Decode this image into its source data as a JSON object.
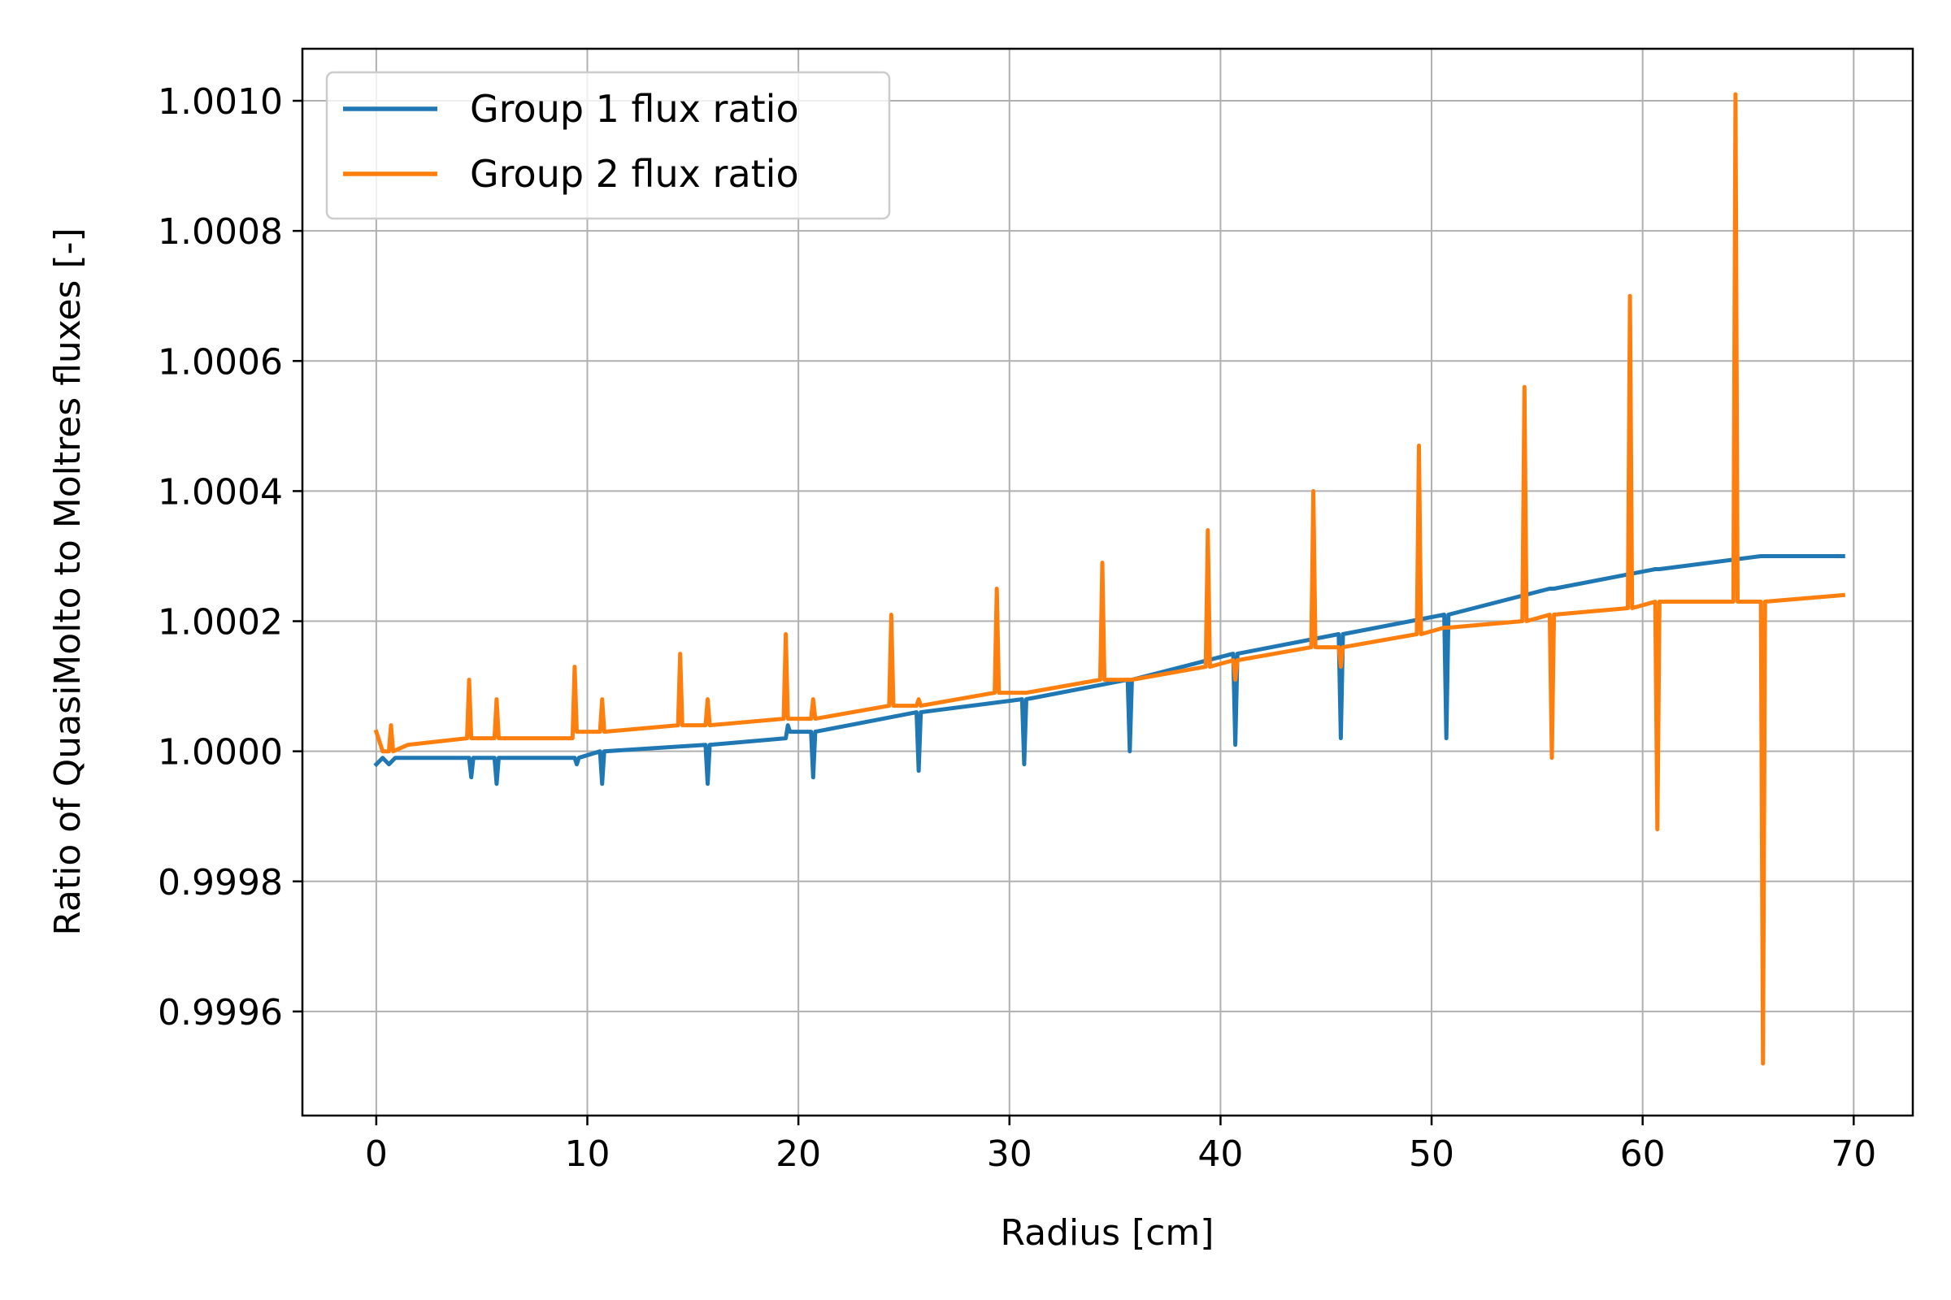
{
  "chart_data": {
    "type": "line",
    "title": "",
    "xlabel": "Radius [cm]",
    "ylabel": "Ratio of QuasiMolto to Moltres fluxes [-]",
    "xlim": [
      -3.5,
      72.8
    ],
    "ylim": [
      0.99944,
      1.00108
    ],
    "grid": true,
    "legend_position": "top-left",
    "x_ticks": [
      0,
      10,
      20,
      30,
      40,
      50,
      60,
      70
    ],
    "x_tick_labels": [
      "0",
      "10",
      "20",
      "30",
      "40",
      "50",
      "60",
      "70"
    ],
    "y_ticks": [
      0.9996,
      0.9998,
      1.0,
      1.0002,
      1.0004,
      1.0006,
      1.0008,
      1.001
    ],
    "y_tick_labels": [
      "0.9996",
      "0.9998",
      "1.0000",
      "1.0002",
      "1.0004",
      "1.0006",
      "1.0008",
      "1.0010"
    ],
    "colors": {
      "group1": "#1f77b4",
      "group2": "#ff7f0e",
      "grid": "#b0b0b0"
    },
    "series": [
      {
        "name": "Group 1 flux ratio",
        "color": "#1f77b4",
        "x": [
          0,
          0.3,
          0.6,
          0.9,
          4.4,
          4.5,
          4.6,
          5.6,
          5.7,
          5.8,
          9.4,
          9.5,
          9.6,
          10.6,
          10.7,
          10.8,
          15.6,
          15.7,
          15.8,
          19.4,
          19.5,
          19.6,
          20.6,
          20.7,
          20.8,
          25.6,
          25.7,
          25.8,
          30.6,
          30.7,
          30.8,
          35.6,
          35.7,
          35.8,
          40.6,
          40.7,
          40.8,
          45.6,
          45.7,
          45.8,
          50.6,
          50.7,
          50.8,
          55.6,
          55.7,
          55.8,
          60.6,
          60.7,
          60.8,
          65.6,
          65.7,
          65.8,
          69.5
        ],
        "y": [
          0.99998,
          0.99999,
          0.99998,
          0.99999,
          0.99999,
          0.99996,
          0.99999,
          0.99999,
          0.99995,
          0.99999,
          0.99999,
          0.99998,
          0.99999,
          1.0,
          0.99995,
          1.0,
          1.00001,
          0.99995,
          1.00001,
          1.00002,
          1.00004,
          1.00003,
          1.00003,
          0.99996,
          1.00003,
          1.00006,
          0.99997,
          1.00006,
          1.00008,
          0.99998,
          1.00008,
          1.00011,
          1.0,
          1.00011,
          1.00015,
          1.00001,
          1.00015,
          1.00018,
          1.00002,
          1.00018,
          1.00021,
          1.00002,
          1.00021,
          1.00025,
          1.00025,
          1.00025,
          1.00028,
          1.00028,
          1.00028,
          1.0003,
          1.0003,
          1.0003,
          1.0003
        ]
      },
      {
        "name": "Group 2 flux ratio",
        "color": "#ff7f0e",
        "x": [
          0,
          0.3,
          0.6,
          0.7,
          0.8,
          1.5,
          4.3,
          4.4,
          4.5,
          5.6,
          5.7,
          5.8,
          9.3,
          9.4,
          9.5,
          10.6,
          10.7,
          10.8,
          14.3,
          14.4,
          14.5,
          15.6,
          15.7,
          15.8,
          19.3,
          19.4,
          19.5,
          20.6,
          20.7,
          20.8,
          24.3,
          24.4,
          24.5,
          25.6,
          25.7,
          25.8,
          29.3,
          29.4,
          29.5,
          30.6,
          30.7,
          30.8,
          34.3,
          34.4,
          34.5,
          35.6,
          35.7,
          35.8,
          39.3,
          39.4,
          39.5,
          40.6,
          40.7,
          40.8,
          44.3,
          44.4,
          44.5,
          45.6,
          45.7,
          45.8,
          49.3,
          49.4,
          49.5,
          50.6,
          50.7,
          50.8,
          54.3,
          54.4,
          54.5,
          55.6,
          55.7,
          55.8,
          59.3,
          59.4,
          59.5,
          60.6,
          60.7,
          60.8,
          64.3,
          64.4,
          64.5,
          65.6,
          65.7,
          65.8,
          69.5
        ],
        "y": [
          1.00003,
          1.0,
          1.0,
          1.00004,
          1.0,
          1.00001,
          1.00002,
          1.00011,
          1.00002,
          1.00002,
          1.00008,
          1.00002,
          1.00002,
          1.00013,
          1.00003,
          1.00003,
          1.00008,
          1.00003,
          1.00004,
          1.00015,
          1.00004,
          1.00004,
          1.00008,
          1.00004,
          1.00005,
          1.00018,
          1.00005,
          1.00005,
          1.00008,
          1.00005,
          1.00007,
          1.00021,
          1.00007,
          1.00007,
          1.00008,
          1.00007,
          1.00009,
          1.00025,
          1.00009,
          1.00009,
          1.00009,
          1.00009,
          1.00011,
          1.00029,
          1.00011,
          1.00011,
          1.00011,
          1.00011,
          1.00013,
          1.00034,
          1.00013,
          1.00014,
          1.00011,
          1.00014,
          1.00016,
          1.0004,
          1.00016,
          1.00016,
          1.00013,
          1.00016,
          1.00018,
          1.00047,
          1.00018,
          1.00019,
          1.00019,
          1.00019,
          1.0002,
          1.00056,
          1.0002,
          1.00021,
          0.99999,
          1.00021,
          1.00022,
          1.0007,
          1.00022,
          1.00023,
          0.99988,
          1.00023,
          1.00023,
          1.00101,
          1.00023,
          1.00023,
          0.99952,
          1.00023,
          1.00024
        ]
      }
    ]
  }
}
